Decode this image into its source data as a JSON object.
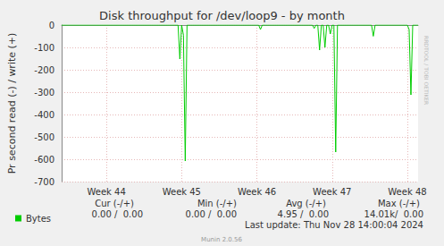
{
  "chart_data": {
    "type": "line",
    "title": "Disk throughput for /dev/loop9 - by month",
    "y_label": "Pr second read (-) / write (+)",
    "categories": [
      null,
      null,
      null,
      null,
      null,
      null,
      null,
      null,
      null,
      null,
      null,
      null,
      null,
      null,
      null,
      null,
      null,
      null,
      null,
      null,
      null,
      null,
      null,
      null,
      null,
      "Week 44",
      null,
      null,
      null,
      null,
      null,
      null,
      null,
      null,
      null,
      null,
      null,
      null,
      null,
      null,
      null,
      null,
      null,
      null,
      null,
      null,
      null,
      null,
      null,
      null,
      null,
      null,
      null,
      null,
      null,
      null,
      null,
      null,
      null,
      null,
      null,
      null,
      null,
      null,
      null,
      null,
      null,
      "Week 45",
      null,
      null,
      null,
      null,
      null,
      null,
      null,
      null,
      null,
      null,
      null,
      null,
      null,
      null,
      null,
      null,
      null,
      null,
      null,
      null,
      null,
      null,
      null,
      null,
      null,
      null,
      null,
      null,
      null,
      null,
      null,
      null,
      null,
      null,
      null,
      null,
      null,
      null,
      null,
      null,
      null,
      "Week 46",
      null,
      null,
      null,
      null,
      null,
      null,
      null,
      null,
      null,
      null,
      null,
      null,
      null,
      null,
      null,
      null,
      null,
      null,
      null,
      null,
      null,
      null,
      null,
      null,
      null,
      null,
      null,
      null,
      null,
      null,
      null,
      null,
      null,
      null,
      null,
      null,
      null,
      null,
      null,
      null,
      null,
      "Week 47",
      null,
      null,
      null,
      null,
      null,
      null,
      null,
      null,
      null,
      null,
      null,
      null,
      null,
      null,
      null,
      null,
      null,
      null,
      null,
      null,
      null,
      null,
      null,
      null,
      null,
      null,
      null,
      null,
      null,
      null,
      null,
      null,
      null,
      null,
      null,
      null,
      null,
      null,
      null,
      null,
      null,
      "Week 48",
      null,
      null,
      null,
      null,
      null,
      null
    ],
    "series": [
      {
        "name": "Bytes",
        "color": "#00cc00",
        "values": [
          0,
          0,
          0,
          0,
          0,
          0,
          0,
          0,
          0,
          0,
          0,
          0,
          0,
          0,
          0,
          0,
          0,
          0,
          0,
          0,
          0,
          0,
          0,
          0,
          0,
          0,
          0,
          0,
          0,
          0,
          0,
          0,
          0,
          0,
          0,
          0,
          0,
          0,
          0,
          0,
          0,
          0,
          0,
          0,
          0,
          0,
          0,
          0,
          0,
          0,
          0,
          0,
          0,
          0,
          0,
          0,
          0,
          0,
          0,
          0,
          0,
          0,
          0,
          0,
          0,
          0,
          -152,
          0,
          -45,
          -608,
          0,
          0,
          0,
          0,
          0,
          0,
          0,
          0,
          0,
          0,
          0,
          0,
          0,
          0,
          0,
          0,
          0,
          0,
          0,
          0,
          0,
          0,
          0,
          0,
          0,
          0,
          0,
          0,
          0,
          0,
          0,
          0,
          0,
          0,
          0,
          0,
          0,
          0,
          0,
          0,
          0,
          -20,
          0,
          0,
          0,
          0,
          0,
          0,
          0,
          0,
          0,
          0,
          0,
          0,
          0,
          0,
          0,
          0,
          0,
          0,
          0,
          0,
          0,
          0,
          0,
          0,
          0,
          0,
          0,
          0,
          0,
          -15,
          0,
          0,
          -112,
          0,
          0,
          -100,
          0,
          0,
          -40,
          0,
          0,
          -568,
          0,
          0,
          0,
          0,
          0,
          0,
          0,
          0,
          0,
          0,
          0,
          0,
          0,
          0,
          0,
          0,
          0,
          0,
          0,
          0,
          -50,
          0,
          0,
          0,
          0,
          0,
          0,
          0,
          0,
          0,
          0,
          0,
          0,
          0,
          0,
          0,
          0,
          0,
          0,
          0,
          -20,
          -312,
          0,
          0,
          0,
          0
        ]
      }
    ],
    "ylim": [
      -700,
      0
    ],
    "yticks": [
      -700,
      -600,
      -500,
      -400,
      -300,
      -200,
      -100,
      0
    ],
    "grid": true,
    "legend": "bottom-left",
    "stats": {
      "columns": [
        "Cur (-/+)",
        "Min (-/+)",
        "Avg (-/+)",
        "Max (-/+)"
      ],
      "values": [
        "0.00 /  0.00",
        "0.00 /  0.00",
        "4.95 /  0.00",
        "14.01k/  0.00"
      ]
    },
    "footer": "Last update: Thu Nov 28 14:00:04 2024",
    "credit": "Munin 2.0.56",
    "watermark": "RRDTOOL / TOBI OETIKER"
  }
}
